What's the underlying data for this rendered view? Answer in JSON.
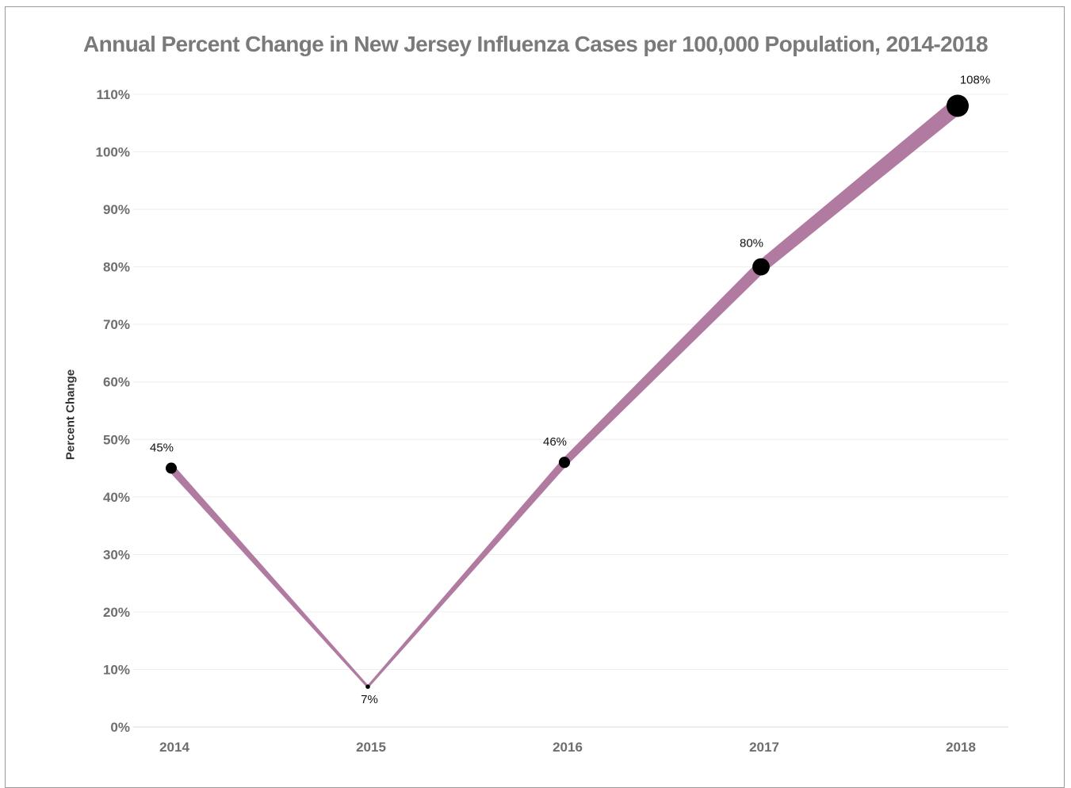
{
  "chart_data": {
    "type": "line",
    "title": "Annual Percent Change in New Jersey Influenza Cases per 100,000 Population, 2014-2018",
    "ylabel": "Percent Change",
    "xlabel": "",
    "categories": [
      "2014",
      "2015",
      "2016",
      "2017",
      "2018"
    ],
    "series": [
      {
        "values": [
          45,
          7,
          46,
          80,
          108
        ],
        "data_labels": [
          "45%",
          "7%",
          "46%",
          "80%",
          "108%"
        ],
        "line_color": "#b07aa1",
        "marker_color": "#000000"
      }
    ],
    "ylim": [
      0,
      110
    ],
    "y_ticks": [
      0,
      10,
      20,
      30,
      40,
      50,
      60,
      70,
      80,
      90,
      100,
      110
    ],
    "y_tick_labels": [
      "0%",
      "10%",
      "20%",
      "30%",
      "40%",
      "50%",
      "60%",
      "70%",
      "80%",
      "90%",
      "100%",
      "110%"
    ],
    "grid": true,
    "legend": "none",
    "encoding": "line thickness and marker size grow with value"
  }
}
